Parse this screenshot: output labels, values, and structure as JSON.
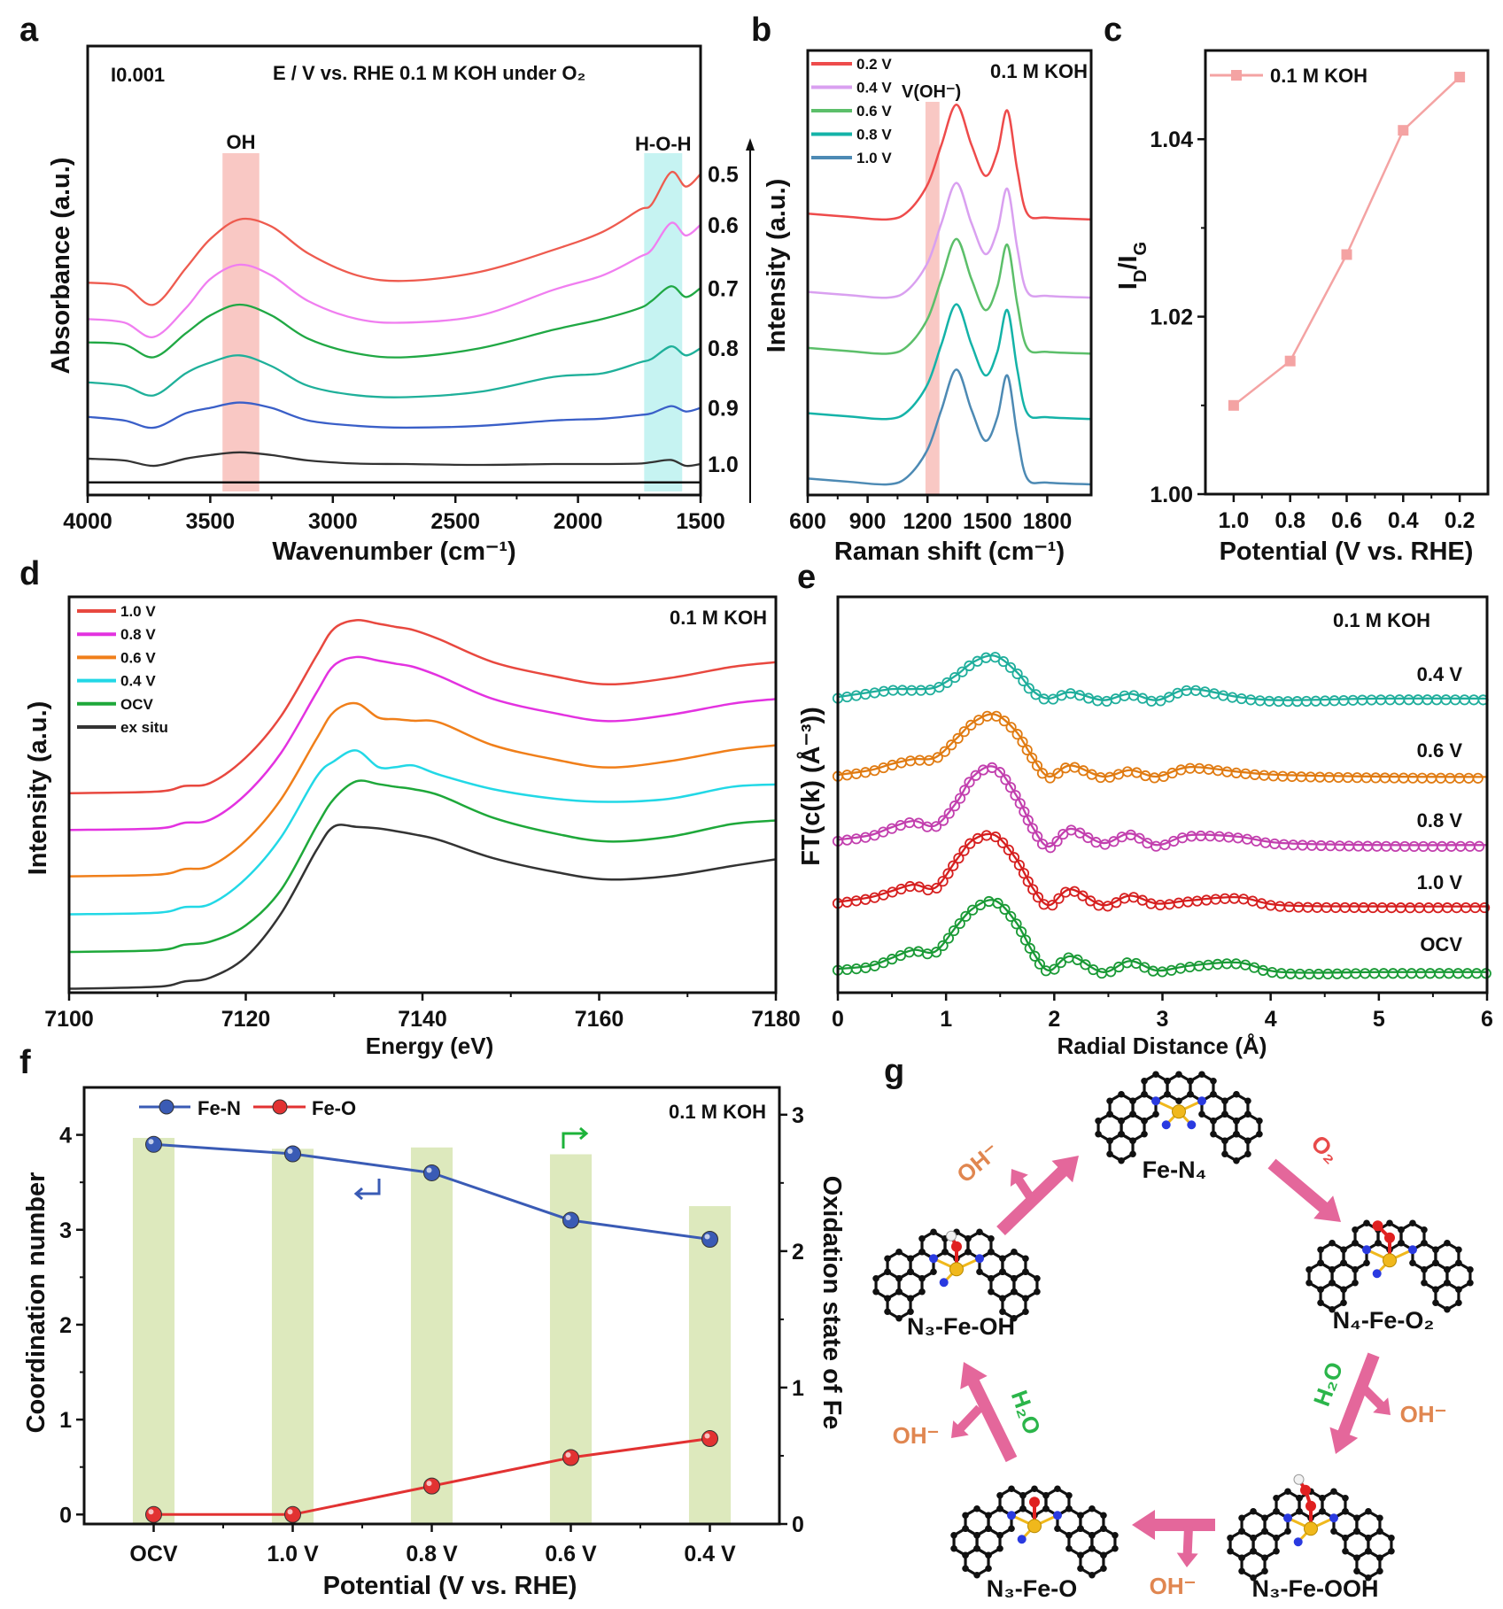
{
  "figure": {
    "panel_letters": [
      "a",
      "b",
      "c",
      "d",
      "e",
      "f",
      "g"
    ]
  },
  "chart_data": [
    {
      "panel": "a",
      "type": "line",
      "xlabel": "Wavenumber (cm⁻¹)",
      "ylabel": "Absorbance (a.u.)",
      "xlim": [
        4000,
        1500
      ],
      "ylim": [
        0,
        10
      ],
      "reversed_x": true,
      "x_ticks": [
        4000,
        3500,
        3000,
        2500,
        2000,
        1500
      ],
      "scale_bar": "I0.001",
      "annotation": "E / V vs. RHE  0.1 M KOH  under O₂",
      "bands": [
        {
          "label": "OH",
          "range": [
            3450,
            3300
          ],
          "color": "#f9c8c4"
        },
        {
          "label": "H-O-H",
          "range": [
            1730,
            1575
          ],
          "color": "#c6f3f2"
        }
      ],
      "reference_line": 0.28,
      "x": [
        4000,
        3850,
        3730,
        3600,
        3500,
        3380,
        3250,
        3100,
        2900,
        2700,
        2400,
        2100,
        1900,
        1750,
        1700,
        1620,
        1560,
        1500
      ],
      "series": [
        {
          "name": "0.5",
          "color": "#ee5b4f",
          "values": [
            4.73,
            4.65,
            4.24,
            5.05,
            5.7,
            6.14,
            5.98,
            5.38,
            4.89,
            4.77,
            4.97,
            5.46,
            5.86,
            6.35,
            6.47,
            7.19,
            6.87,
            7.15
          ]
        },
        {
          "name": "0.6",
          "color": "#f07ef0",
          "values": [
            3.92,
            3.84,
            3.52,
            4.16,
            4.81,
            5.13,
            4.89,
            4.32,
            3.92,
            3.84,
            4.0,
            4.57,
            4.89,
            5.3,
            5.46,
            6.06,
            5.78,
            6.02
          ]
        },
        {
          "name": "0.7",
          "color": "#20a844",
          "values": [
            3.4,
            3.35,
            3.07,
            3.6,
            4.0,
            4.24,
            4.0,
            3.48,
            3.15,
            3.07,
            3.27,
            3.68,
            3.92,
            4.16,
            4.32,
            4.65,
            4.41,
            4.61
          ]
        },
        {
          "name": "0.8",
          "color": "#1fb09a",
          "values": [
            2.51,
            2.43,
            2.22,
            2.71,
            2.95,
            3.11,
            2.87,
            2.43,
            2.22,
            2.18,
            2.3,
            2.63,
            2.71,
            2.95,
            3.03,
            3.31,
            3.11,
            3.27
          ]
        },
        {
          "name": "0.9",
          "color": "#3a5fc8",
          "values": [
            1.74,
            1.66,
            1.5,
            1.82,
            1.94,
            2.06,
            1.94,
            1.66,
            1.54,
            1.5,
            1.54,
            1.66,
            1.7,
            1.78,
            1.82,
            1.98,
            1.86,
            1.94
          ]
        },
        {
          "name": "1.0",
          "color": "#333333",
          "values": [
            0.81,
            0.77,
            0.65,
            0.81,
            0.89,
            0.95,
            0.89,
            0.77,
            0.7,
            0.69,
            0.67,
            0.69,
            0.69,
            0.7,
            0.73,
            0.78,
            0.65,
            0.69
          ]
        }
      ]
    },
    {
      "panel": "b",
      "type": "line",
      "xlabel": "Raman shift (cm⁻¹)",
      "ylabel": "Intensity (a.u.)",
      "xlim": [
        600,
        2020
      ],
      "ylim": [
        0,
        10
      ],
      "x_ticks": [
        600,
        900,
        1200,
        1500,
        1800
      ],
      "annotation": "0.1 M KOH",
      "band_label": "V(OH⁻)",
      "band": {
        "range": [
          1190,
          1260
        ],
        "color": "#f9c8c4"
      },
      "legend": "top-left",
      "x": [
        600,
        800,
        1000,
        1100,
        1200,
        1270,
        1345,
        1420,
        1490,
        1550,
        1600,
        1650,
        1700,
        1800,
        2020
      ],
      "series": [
        {
          "name": "0.2 V",
          "color": "#ee4b4b",
          "values": [
            6.33,
            6.26,
            6.2,
            6.37,
            6.98,
            7.88,
            8.78,
            7.88,
            7.18,
            7.71,
            8.65,
            7.31,
            6.33,
            6.24,
            6.2
          ]
        },
        {
          "name": "0.4 V",
          "color": "#d9a0f0",
          "values": [
            4.57,
            4.5,
            4.44,
            4.61,
            5.22,
            6.12,
            7.02,
            6.12,
            5.42,
            5.95,
            6.89,
            5.55,
            4.57,
            4.48,
            4.44
          ]
        },
        {
          "name": "0.6 V",
          "color": "#5cbf6a",
          "values": [
            3.31,
            3.24,
            3.18,
            3.35,
            3.96,
            4.86,
            5.76,
            4.86,
            4.16,
            4.69,
            5.63,
            4.29,
            3.31,
            3.22,
            3.18
          ]
        },
        {
          "name": "0.8 V",
          "color": "#14b3a8",
          "values": [
            1.84,
            1.77,
            1.71,
            1.88,
            2.49,
            3.39,
            4.29,
            3.39,
            2.69,
            3.22,
            4.16,
            2.82,
            1.84,
            1.75,
            1.71
          ]
        },
        {
          "name": "1.0 V",
          "color": "#4d8ab4",
          "values": [
            0.37,
            0.3,
            0.24,
            0.41,
            1.02,
            1.92,
            2.82,
            1.92,
            1.22,
            1.75,
            2.69,
            1.35,
            0.37,
            0.28,
            0.24
          ]
        }
      ]
    },
    {
      "panel": "c",
      "type": "line",
      "xlabel": "Potential (V vs. RHE)",
      "ylabel": {
        "main": "I",
        "sub": "D",
        "main2": "/I",
        "sub2": "G"
      },
      "xlim": [
        1.1,
        0.1
      ],
      "ylim": [
        1.0,
        1.05
      ],
      "y_ticks": [
        1.0,
        1.02,
        1.04
      ],
      "legend": "top-left",
      "series": [
        {
          "name": "0.1 M KOH",
          "color": "#f4a3a3",
          "x": [
            1.0,
            0.8,
            0.6,
            0.4,
            0.2
          ],
          "values": [
            1.01,
            1.015,
            1.027,
            1.041,
            1.047
          ]
        }
      ]
    },
    {
      "panel": "d",
      "type": "line",
      "xlabel": "Energy (eV)",
      "ylabel": "Intensity (a.u.)",
      "xlim": [
        7100,
        7180
      ],
      "ylim": [
        0,
        10
      ],
      "x_ticks": [
        7100,
        7120,
        7140,
        7160,
        7180
      ],
      "annotation": "0.1 M KOH",
      "legend": "top-left",
      "x": [
        7100,
        7110,
        7113,
        7116,
        7120,
        7124,
        7128,
        7130,
        7132.5,
        7135,
        7137,
        7139,
        7142,
        7148,
        7155,
        7161,
        7168,
        7175,
        7180
      ],
      "series": [
        {
          "name": "1.0 V",
          "color": "#e8483f",
          "values": [
            5.04,
            5.08,
            5.22,
            5.3,
            5.94,
            6.99,
            8.51,
            9.2,
            9.41,
            9.32,
            9.24,
            9.16,
            8.92,
            8.35,
            7.99,
            7.79,
            7.95,
            8.23,
            8.35
          ]
        },
        {
          "name": "0.8 V",
          "color": "#e332e0",
          "values": [
            4.11,
            4.15,
            4.29,
            4.37,
            5.01,
            6.06,
            7.58,
            8.27,
            8.48,
            8.39,
            8.31,
            8.23,
            7.99,
            7.42,
            7.06,
            6.86,
            7.02,
            7.3,
            7.42
          ]
        },
        {
          "name": "0.6 V",
          "color": "#f07f1a",
          "values": [
            2.94,
            2.98,
            3.12,
            3.2,
            3.84,
            4.89,
            6.41,
            7.1,
            7.31,
            6.95,
            6.91,
            6.87,
            6.82,
            6.25,
            5.89,
            5.69,
            5.85,
            6.13,
            6.25
          ]
        },
        {
          "name": "0.4 V",
          "color": "#22d8e6",
          "values": [
            1.98,
            2.02,
            2.16,
            2.24,
            2.88,
            3.93,
            5.45,
            5.85,
            6.12,
            5.7,
            5.7,
            5.74,
            5.5,
            5.14,
            4.9,
            4.82,
            4.9,
            5.2,
            5.26
          ]
        },
        {
          "name": "OCV",
          "color": "#1ea83a",
          "values": [
            1.03,
            1.07,
            1.21,
            1.29,
            1.7,
            2.6,
            4.2,
            4.9,
            5.34,
            5.27,
            5.2,
            5.14,
            4.98,
            4.42,
            4.02,
            3.82,
            3.94,
            4.26,
            4.35
          ]
        },
        {
          "name": "ex situ",
          "color": "#333333",
          "values": [
            0.1,
            0.15,
            0.28,
            0.38,
            0.9,
            2.0,
            3.6,
            4.2,
            4.19,
            4.15,
            4.08,
            4.0,
            3.85,
            3.4,
            3.05,
            2.86,
            2.95,
            3.2,
            3.37
          ]
        }
      ]
    },
    {
      "panel": "e",
      "type": "line",
      "xlabel": "Radial Distance (Å)",
      "ylabel": "FT(c(k) (Å⁻³))",
      "xlim": [
        0,
        6
      ],
      "ylim": [
        0,
        10
      ],
      "x_ticks": [
        0,
        1,
        2,
        3,
        4,
        5,
        6
      ],
      "annotation": "0.1 M KOH",
      "x": [
        0,
        0.3,
        0.5,
        0.7,
        0.9,
        1.1,
        1.25,
        1.45,
        1.65,
        1.8,
        1.95,
        2.15,
        2.45,
        2.7,
        2.95,
        3.25,
        3.7,
        4.1,
        5,
        6
      ],
      "series": [
        {
          "name": "0.4 V",
          "color": "#1fae9c",
          "values": [
            7.47,
            7.59,
            7.67,
            7.67,
            7.71,
            8.03,
            8.35,
            8.51,
            8.11,
            7.63,
            7.43,
            7.59,
            7.39,
            7.55,
            7.39,
            7.67,
            7.47,
            7.39,
            7.43,
            7.43
          ]
        },
        {
          "name": "0.6 V",
          "color": "#e07b12",
          "values": [
            5.5,
            5.62,
            5.78,
            5.9,
            5.94,
            6.43,
            6.83,
            7.03,
            6.59,
            5.94,
            5.46,
            5.74,
            5.46,
            5.62,
            5.46,
            5.7,
            5.58,
            5.5,
            5.46,
            5.45
          ]
        },
        {
          "name": "0.8 V",
          "color": "#c23fae",
          "values": [
            3.86,
            3.98,
            4.18,
            4.34,
            4.22,
            4.82,
            5.46,
            5.7,
            4.98,
            4.18,
            3.69,
            4.14,
            3.78,
            4.02,
            3.73,
            3.98,
            3.94,
            3.78,
            3.73,
            3.73
          ]
        },
        {
          "name": "1.0 V",
          "color": "#d61f1f",
          "values": [
            2.29,
            2.41,
            2.57,
            2.73,
            2.65,
            3.37,
            3.86,
            3.98,
            3.37,
            2.65,
            2.21,
            2.61,
            2.21,
            2.45,
            2.25,
            2.33,
            2.41,
            2.21,
            2.18,
            2.18
          ]
        },
        {
          "name": "OCV",
          "color": "#1a9a36",
          "values": [
            0.6,
            0.68,
            0.88,
            1.08,
            1.04,
            1.69,
            2.13,
            2.33,
            1.77,
            1.04,
            0.56,
            0.92,
            0.52,
            0.8,
            0.56,
            0.68,
            0.76,
            0.52,
            0.52,
            0.52
          ]
        }
      ]
    },
    {
      "panel": "f",
      "type": "bar+line",
      "xlabel": "Potential (V vs. RHE)",
      "ylabel_left": "Coordination number",
      "ylabel_right": "Oxidation state of Fe",
      "categories": [
        "OCV",
        "1.0 V",
        "0.8 V",
        "0.6 V",
        "0.4 V"
      ],
      "ylim_left": [
        -0.1,
        4.5
      ],
      "ylim_right": [
        0,
        3.2
      ],
      "y_ticks_left": [
        0,
        1,
        2,
        3,
        4
      ],
      "y_ticks_right": [
        0,
        1,
        2,
        3
      ],
      "annotation": "0.1 M KOH",
      "legend": "top-left",
      "bars": {
        "axis": "right",
        "color": "#dde9bd",
        "values": [
          2.83,
          2.75,
          2.76,
          2.71,
          2.33
        ]
      },
      "series": [
        {
          "name": "Fe-N",
          "axis": "left",
          "color": "#3a5bb5",
          "values": [
            3.9,
            3.8,
            3.6,
            3.1,
            2.9
          ]
        },
        {
          "name": "Fe-O",
          "axis": "left",
          "color": "#e23232",
          "values": [
            0,
            0,
            0.3,
            0.6,
            0.8
          ]
        }
      ],
      "axis_indicators": [
        {
          "icon": "arrow-left-axis-icon",
          "color": "#3a5bb5"
        },
        {
          "icon": "arrow-right-axis-icon",
          "color": "#1db33a"
        }
      ]
    }
  ],
  "diagram": {
    "panel": "g",
    "arrow_color": "#e4679b",
    "atom_colors": {
      "C": "#111111",
      "N": "#2a3ae0",
      "Fe": "#f0b81c",
      "O": "#e02020",
      "H": "#f2f2f2"
    },
    "species": [
      {
        "label": "Fe-N₄",
        "adsorbate": "none"
      },
      {
        "label": "N₄-Fe-O₂",
        "adsorbate": "O2"
      },
      {
        "label": "N₃-Fe-OOH",
        "adsorbate": "OOH"
      },
      {
        "label": "N₃-Fe-O",
        "adsorbate": "O"
      },
      {
        "label": "N₃-Fe-OH",
        "adsorbate": "OH"
      }
    ],
    "steps": [
      {
        "from": "N₃-Fe-OH",
        "to": "Fe-N₄",
        "product": "OH⁻",
        "product_color": "#e08650"
      },
      {
        "from": "Fe-N₄",
        "to": "N₄-Fe-O₂",
        "reactant": "O₂",
        "reactant_color": "#e84a4a"
      },
      {
        "from": "N₄-Fe-O₂",
        "to": "N₃-Fe-OOH",
        "reactant": "H₂O",
        "reactant_color": "#2bb54a",
        "product": "OH⁻",
        "product_color": "#e08650"
      },
      {
        "from": "N₃-Fe-OOH",
        "to": "N₃-Fe-O",
        "product": "OH⁻",
        "product_color": "#e08650"
      },
      {
        "from": "N₃-Fe-O",
        "to": "N₃-Fe-OH",
        "reactant": "H₂O",
        "reactant_color": "#2bb54a",
        "product": "OH⁻",
        "product_color": "#e08650"
      }
    ]
  }
}
